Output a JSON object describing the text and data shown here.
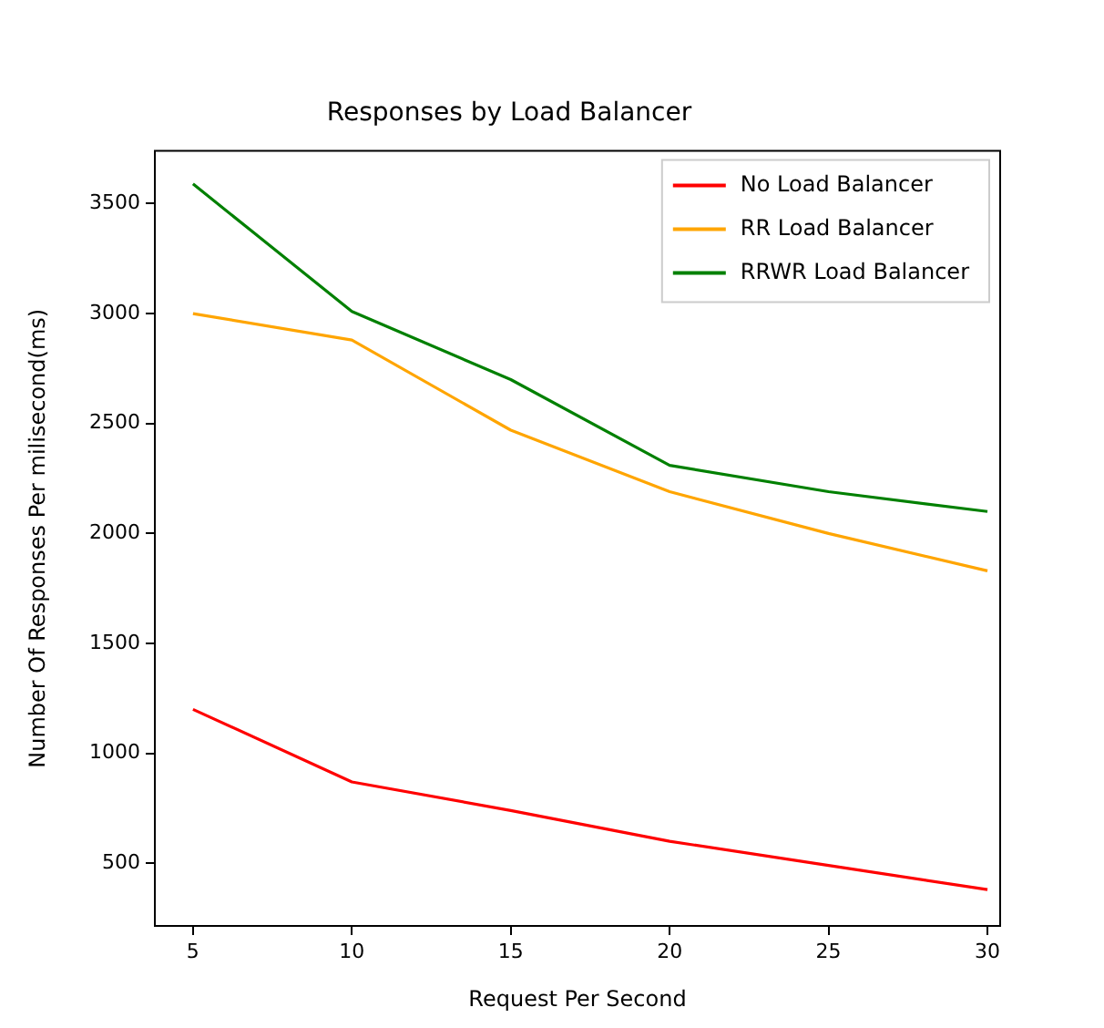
{
  "chart_data": {
    "type": "line",
    "title": "Responses by Load Balancer",
    "xlabel": "Request Per Second",
    "ylabel": "Number Of Responses Per milisecond(ms)",
    "x": [
      5,
      10,
      15,
      20,
      25,
      30
    ],
    "series": [
      {
        "name": "No Load Balancer",
        "color": "#ff0000",
        "values": [
          1200,
          870,
          740,
          600,
          490,
          380
        ]
      },
      {
        "name": "RR Load Balancer",
        "color": "#ffa500",
        "values": [
          3000,
          2880,
          2470,
          2190,
          2000,
          1830
        ]
      },
      {
        "name": "RRWR Load Balancer",
        "color": "#008000",
        "values": [
          3590,
          3010,
          2700,
          2310,
          2190,
          2100
        ]
      }
    ],
    "xlim": [
      3.8,
      30.4
    ],
    "xticks": [
      5,
      10,
      15,
      20,
      25,
      30
    ],
    "ylim": [
      215,
      3740
    ],
    "yticks": [
      500,
      1000,
      1500,
      2000,
      2500,
      3000,
      3500
    ],
    "grid": false,
    "legend": "top right",
    "marker": "none",
    "line_style": "solid"
  }
}
